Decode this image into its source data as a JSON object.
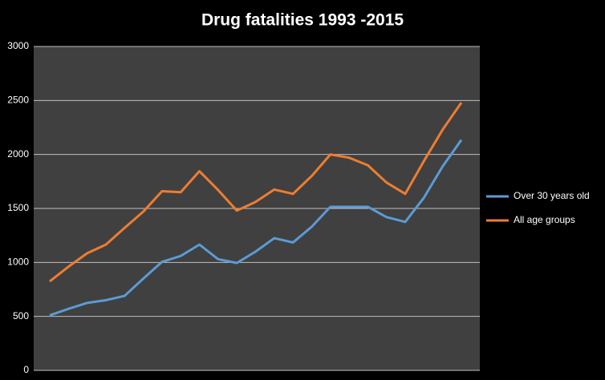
{
  "chart_data": {
    "type": "line",
    "title": "Drug fatalities 1993 -2015",
    "categories": [
      null,
      null,
      null,
      null,
      null,
      null,
      null,
      null,
      null,
      null,
      null,
      null,
      null,
      null,
      null,
      null,
      null,
      null,
      null,
      null,
      null,
      null,
      null
    ],
    "series": [
      {
        "name": "Over 30 years old",
        "color": "#5b9bd5",
        "values": [
          510,
          570,
          625,
          650,
          690,
          850,
          1005,
          1060,
          1165,
          1030,
          995,
          1100,
          1225,
          1185,
          1330,
          1515,
          1515,
          1515,
          1420,
          1375,
          1600,
          1890,
          2135
        ]
      },
      {
        "name": "All age groups",
        "color": "#ed7d31",
        "values": [
          825,
          960,
          1085,
          1165,
          1320,
          1470,
          1660,
          1650,
          1845,
          1670,
          1480,
          1560,
          1675,
          1635,
          1800,
          2000,
          1970,
          1900,
          1740,
          1635,
          1940,
          2230,
          2480
        ]
      }
    ],
    "ylim": [
      0,
      3000
    ],
    "yticks": [
      0,
      500,
      1000,
      1500,
      2000,
      2500,
      3000
    ],
    "grid": true,
    "legend": "right"
  }
}
